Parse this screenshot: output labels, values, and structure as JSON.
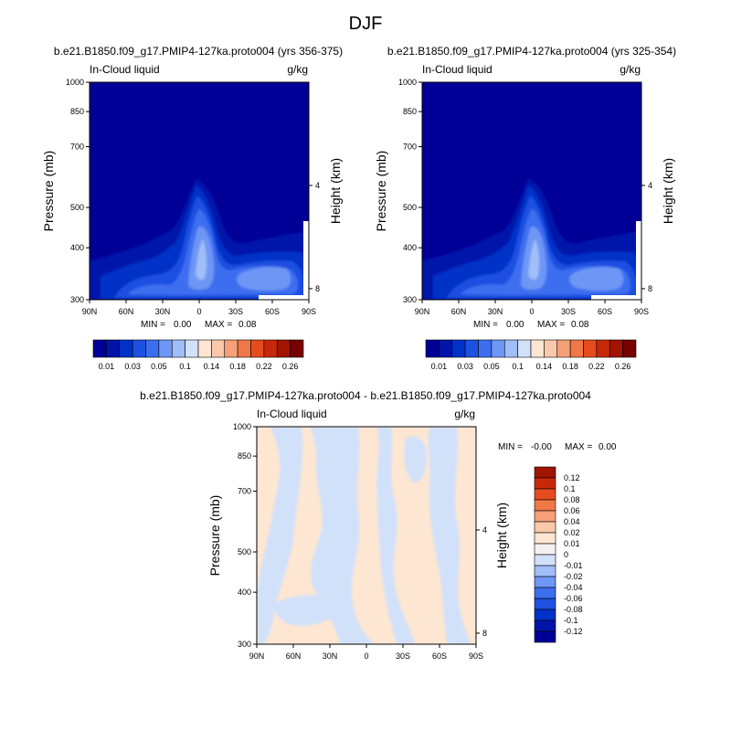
{
  "figure": {
    "title": "DJF"
  },
  "chart_data": [
    {
      "type": "heatmap",
      "title": "b.e21.B1850.f09_g17.PMIP4-127ka.proto004 (yrs 356-375)",
      "left_label": "In-Cloud liquid",
      "right_label": "g/kg",
      "ylabel": "Pressure (mb)",
      "ylabel_right": "Height (km)",
      "x_ticks": [
        "90N",
        "60N",
        "30N",
        "0",
        "30S",
        "60S",
        "90S"
      ],
      "y_ticks": [
        "300",
        "400",
        "500",
        "700",
        "850",
        "1000"
      ],
      "y_right_ticks": [
        "8",
        "4"
      ],
      "ylim": [
        1000,
        300
      ],
      "y_scale": "log",
      "stats": {
        "min_label": "MIN =",
        "min": "0.00",
        "max_label": "MAX =",
        "max": "0.08"
      },
      "colorbar": {
        "labels": [
          "0.01",
          "0.03",
          "0.05",
          "0.1",
          "0.14",
          "0.18",
          "0.22",
          "0.26"
        ],
        "colors": [
          "#000096",
          "#0014aa",
          "#0032c8",
          "#1e50e1",
          "#3c6ef0",
          "#6e96f5",
          "#a0bef8",
          "#d2e1fa",
          "#fde6d2",
          "#fac8aa",
          "#f5a078",
          "#f07846",
          "#e64b1e",
          "#c8280a",
          "#a01400",
          "#780000"
        ]
      }
    },
    {
      "type": "heatmap",
      "title": "b.e21.B1850.f09_g17.PMIP4-127ka.proto004 (yrs 325-354)",
      "left_label": "In-Cloud liquid",
      "right_label": "g/kg",
      "ylabel": "Pressure (mb)",
      "ylabel_right": "Height (km)",
      "x_ticks": [
        "90N",
        "60N",
        "30N",
        "0",
        "30S",
        "60S",
        "90S"
      ],
      "y_ticks": [
        "300",
        "400",
        "500",
        "700",
        "850",
        "1000"
      ],
      "y_right_ticks": [
        "8",
        "4"
      ],
      "ylim": [
        1000,
        300
      ],
      "y_scale": "log",
      "stats": {
        "min_label": "MIN =",
        "min": "0.00",
        "max_label": "MAX =",
        "max": "0.08"
      },
      "colorbar": {
        "labels": [
          "0.01",
          "0.03",
          "0.05",
          "0.1",
          "0.14",
          "0.18",
          "0.22",
          "0.26"
        ],
        "colors": [
          "#000096",
          "#0014aa",
          "#0032c8",
          "#1e50e1",
          "#3c6ef0",
          "#6e96f5",
          "#a0bef8",
          "#d2e1fa",
          "#fde6d2",
          "#fac8aa",
          "#f5a078",
          "#f07846",
          "#e64b1e",
          "#c8280a",
          "#a01400",
          "#780000"
        ]
      }
    },
    {
      "type": "heatmap",
      "title": "b.e21.B1850.f09_g17.PMIP4-127ka.proto004 - b.e21.B1850.f09_g17.PMIP4-127ka.proto004",
      "left_label": "In-Cloud liquid",
      "right_label": "g/kg",
      "ylabel": "Pressure (mb)",
      "ylabel_right": "Height (km)",
      "x_ticks": [
        "90N",
        "60N",
        "30N",
        "0",
        "30S",
        "60S",
        "90S"
      ],
      "y_ticks": [
        "300",
        "400",
        "500",
        "700",
        "850",
        "1000"
      ],
      "y_right_ticks": [
        "8",
        "4"
      ],
      "ylim": [
        1000,
        300
      ],
      "y_scale": "log",
      "stats": {
        "min_label": "MIN =",
        "min": "-0.00",
        "max_label": "MAX =",
        "max": "0.00"
      },
      "colorbar": {
        "labels": [
          "0.12",
          "0.1",
          "0.08",
          "0.06",
          "0.04",
          "0.02",
          "0.01",
          "0",
          "-0.01",
          "-0.02",
          "-0.04",
          "-0.06",
          "-0.08",
          "-0.1",
          "-0.12"
        ],
        "colors": [
          "#a01400",
          "#c8280a",
          "#e64b1e",
          "#f07846",
          "#f5a078",
          "#fac8aa",
          "#fde6d2",
          "#f5f0f0",
          "#d2e1fa",
          "#a0bef8",
          "#6e96f5",
          "#3c6ef0",
          "#1e50e1",
          "#0032c8",
          "#0014aa",
          "#000096"
        ]
      }
    }
  ]
}
